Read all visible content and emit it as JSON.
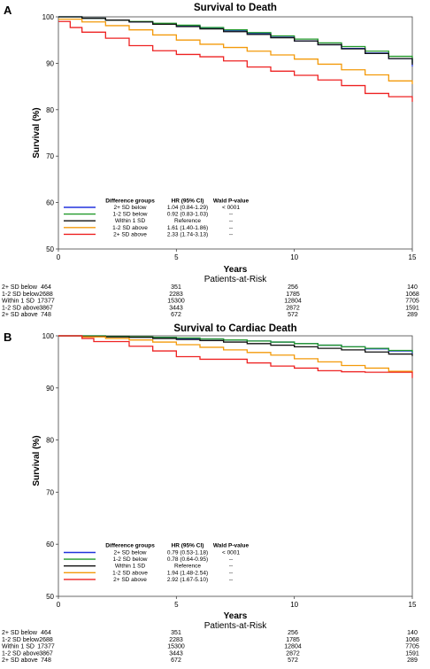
{
  "chart_data": [
    {
      "panel_label": "A",
      "type": "line",
      "title": "Survival to Death",
      "xlabel": "Years",
      "ylabel": "Survival (%)",
      "xlim": [
        0,
        15
      ],
      "ylim": [
        50,
        100
      ],
      "xticks": [
        0,
        5,
        10,
        15
      ],
      "yticks": [
        50,
        60,
        70,
        80,
        90,
        100
      ],
      "grid": false,
      "legend_placement": "bottom-left",
      "legend_headers": [
        "Difference groups",
        "HR (95% CI)",
        "Wald P-value"
      ],
      "series": [
        {
          "name": "2+ SD below",
          "color": "#2233dd",
          "hr": "1.04 (0.84-1.29)",
          "p": "< 0001",
          "x": [
            0,
            1,
            2,
            3,
            4,
            5,
            6,
            7,
            8,
            9,
            10,
            11,
            12,
            13,
            14,
            15
          ],
          "y": [
            100,
            99.7,
            99.3,
            98.9,
            98.5,
            98.1,
            97.6,
            97.0,
            96.4,
            95.6,
            94.8,
            94.0,
            93.2,
            92.2,
            91.0,
            89.3
          ]
        },
        {
          "name": "1-2 SD below",
          "color": "#22992a",
          "hr": "0.92 (0.83-1.03)",
          "p": "--",
          "x": [
            0,
            1,
            2,
            3,
            4,
            5,
            6,
            7,
            8,
            9,
            10,
            11,
            12,
            13,
            14,
            15
          ],
          "y": [
            100,
            99.7,
            99.3,
            99.0,
            98.6,
            98.2,
            97.7,
            97.2,
            96.6,
            95.9,
            95.2,
            94.4,
            93.6,
            92.6,
            91.5,
            90.1
          ]
        },
        {
          "name": "Within 1 SD",
          "color": "#111111",
          "hr": "Reference",
          "p": "--",
          "x": [
            0,
            1,
            2,
            3,
            4,
            5,
            6,
            7,
            8,
            9,
            10,
            11,
            12,
            13,
            14,
            15
          ],
          "y": [
            100,
            99.7,
            99.3,
            98.9,
            98.4,
            97.9,
            97.4,
            96.8,
            96.2,
            95.5,
            94.8,
            94.0,
            93.1,
            92.1,
            91.0,
            89.7
          ]
        },
        {
          "name": "1-2 SD above",
          "color": "#f39a0a",
          "hr": "1.61 (1.40-1.86)",
          "p": "--",
          "x": [
            0,
            1,
            2,
            3,
            4,
            5,
            6,
            7,
            8,
            9,
            10,
            11,
            12,
            13,
            14,
            15
          ],
          "y": [
            99.5,
            98.9,
            98.1,
            97.2,
            96.1,
            95.0,
            94.1,
            93.4,
            92.6,
            91.8,
            90.9,
            89.8,
            88.6,
            87.5,
            86.2,
            85.5
          ]
        },
        {
          "name": "2+ SD above",
          "color": "#ee2222",
          "hr": "2.33 (1.74-3.13)",
          "p": "--",
          "x": [
            0,
            0.5,
            1,
            2,
            3,
            4,
            5,
            6,
            7,
            8,
            9,
            10,
            11,
            12,
            13,
            14,
            15
          ],
          "y": [
            99,
            97.7,
            96.7,
            95.4,
            93.8,
            92.7,
            91.9,
            91.4,
            90.5,
            89.2,
            88.3,
            87.4,
            86.4,
            85.2,
            83.5,
            82.8,
            81.7
          ]
        }
      ],
      "risk_table": {
        "title": "Patients-at-Risk",
        "times": [
          0,
          5,
          10,
          15
        ],
        "rows": [
          {
            "label": "2+ SD below",
            "values": [
              "464",
              "351",
              "256",
              "140"
            ]
          },
          {
            "label": "1-2 SD below",
            "values": [
              "2688",
              "2283",
              "1785",
              "1068"
            ]
          },
          {
            "label": "Within 1 SD",
            "values": [
              "17377",
              "15300",
              "12804",
              "7705"
            ]
          },
          {
            "label": "1-2 SD above",
            "values": [
              "3867",
              "3443",
              "2872",
              "1591"
            ]
          },
          {
            "label": "2+ SD above",
            "values": [
              "748",
              "672",
              "572",
              "289"
            ]
          }
        ]
      }
    },
    {
      "panel_label": "B",
      "type": "line",
      "title": "Survival to Cardiac Death",
      "xlabel": "Years",
      "ylabel": "Survival (%)",
      "xlim": [
        0,
        15
      ],
      "ylim": [
        50,
        100
      ],
      "xticks": [
        0,
        5,
        10,
        15
      ],
      "yticks": [
        50,
        60,
        70,
        80,
        90,
        100
      ],
      "grid": false,
      "legend_placement": "bottom-left",
      "legend_headers": [
        "Difference groups",
        "HR (95% CI)",
        "Wald P-value"
      ],
      "series": [
        {
          "name": "2+ SD below",
          "color": "#2233dd",
          "hr": "0.79 (0.53-1.18)",
          "p": "< 0001",
          "x": [
            0,
            1,
            2,
            3,
            4,
            5,
            6,
            7,
            8,
            9,
            10,
            11,
            12,
            13,
            14,
            15
          ],
          "y": [
            100,
            100,
            99.9,
            99.8,
            99.7,
            99.5,
            99.4,
            99.2,
            99.0,
            98.8,
            98.5,
            98.2,
            97.9,
            97.5,
            97.1,
            96.6
          ]
        },
        {
          "name": "1-2 SD below",
          "color": "#22992a",
          "hr": "0.78 (0.64-0.95)",
          "p": "--",
          "x": [
            0,
            1,
            2,
            3,
            4,
            5,
            6,
            7,
            8,
            9,
            10,
            11,
            12,
            13,
            14,
            15
          ],
          "y": [
            100,
            100,
            99.9,
            99.8,
            99.7,
            99.6,
            99.4,
            99.2,
            99.0,
            98.8,
            98.5,
            98.2,
            97.9,
            97.6,
            97.2,
            96.8
          ]
        },
        {
          "name": "Within 1 SD",
          "color": "#111111",
          "hr": "Reference",
          "p": "--",
          "x": [
            0,
            1,
            2,
            3,
            4,
            5,
            6,
            7,
            8,
            9,
            10,
            11,
            12,
            13,
            14,
            15
          ],
          "y": [
            100,
            99.9,
            99.8,
            99.7,
            99.5,
            99.3,
            99.1,
            98.8,
            98.5,
            98.2,
            97.9,
            97.6,
            97.3,
            96.9,
            96.5,
            96.1
          ]
        },
        {
          "name": "1-2 SD above",
          "color": "#f39a0a",
          "hr": "1.94 (1.48-2.54)",
          "p": "--",
          "x": [
            0,
            1,
            2,
            3,
            4,
            5,
            6,
            7,
            8,
            9,
            10,
            11,
            12,
            13,
            14,
            15
          ],
          "y": [
            100,
            99.8,
            99.5,
            99.2,
            98.8,
            98.3,
            97.8,
            97.3,
            96.8,
            96.3,
            95.6,
            95.0,
            94.3,
            93.8,
            93.2,
            92.9
          ]
        },
        {
          "name": "2+ SD above",
          "color": "#ee2222",
          "hr": "2.92 (1.67-5.10)",
          "p": "--",
          "x": [
            0,
            1,
            1.5,
            3,
            4,
            5,
            6,
            7,
            8,
            9,
            10,
            11,
            12,
            13,
            14,
            14.8,
            15
          ],
          "y": [
            100,
            99.5,
            98.9,
            98.0,
            97.1,
            96.0,
            95.5,
            95.5,
            94.8,
            94.2,
            93.8,
            93.3,
            93.1,
            93.0,
            93.0,
            93.0,
            91.9
          ]
        }
      ],
      "risk_table": {
        "title": "Patients-at-Risk",
        "times": [
          0,
          5,
          10,
          15
        ],
        "rows": [
          {
            "label": "2+ SD below",
            "values": [
              "464",
              "351",
              "256",
              "140"
            ]
          },
          {
            "label": "1-2 SD below",
            "values": [
              "2688",
              "2283",
              "1785",
              "1068"
            ]
          },
          {
            "label": "Within 1 SD",
            "values": [
              "17377",
              "15300",
              "12804",
              "7705"
            ]
          },
          {
            "label": "1-2 SD above",
            "values": [
              "3867",
              "3443",
              "2872",
              "1591"
            ]
          },
          {
            "label": "2+ SD above",
            "values": [
              "748",
              "672",
              "572",
              "289"
            ]
          }
        ]
      }
    }
  ]
}
